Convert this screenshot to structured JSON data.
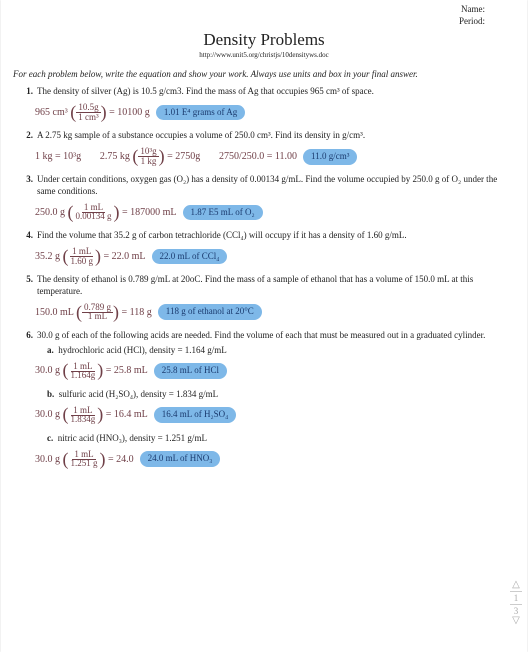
{
  "header": {
    "name_label": "Name:",
    "period_label": "Period:"
  },
  "title": "Density Problems",
  "source_url": "http://www.unit5.org/christjs/10densityws.doc",
  "instructions": "For each problem below, write the equation and show your work.  Always use units and box in your final answer.",
  "problems": [
    {
      "num": "1.",
      "text": "The density of silver (Ag) is 10.5 g/cm3.  Find the mass of Ag that occupies 965 cm³ of space.",
      "work_left": "965 cm³",
      "work_frac_top": "10.5g",
      "work_frac_bot": "1 cm³",
      "work_eq": "= 10100 g",
      "answer": "1.01 E⁴ grams of Ag"
    },
    {
      "num": "2.",
      "text": "A 2.75 kg sample of a substance occupies a volume of 250.0 cm³.  Find its density in g/cm³.",
      "work_pre": "1 kg = 10³g",
      "work_left": "2.75 kg",
      "work_frac_top": "10³g",
      "work_frac_bot": "1 kg",
      "work_eq": "= 2750g",
      "work_extra": "2750/250.0 = 11.00",
      "answer": "11.0 g/cm³"
    },
    {
      "num": "3.",
      "text": "Under certain conditions, oxygen gas (O₂) has a density of 0.00134 g/mL.  Find the volume occupied by 250.0 g of O₂ under the same conditions.",
      "work_left": "250.0 g",
      "work_frac_top": "1 mL",
      "work_frac_bot": "0.00134 g",
      "work_eq": "= 187000 mL",
      "answer": "1.87 E5 mL of O₂"
    },
    {
      "num": "4.",
      "text": "Find the volume that 35.2 g of carbon tetrachloride (CCl₄) will occupy if it has a density of 1.60 g/mL.",
      "work_left": "35.2 g",
      "work_frac_top": "1 mL",
      "work_frac_bot": "1.60 g",
      "work_eq": "= 22.0 mL",
      "answer": "22.0 mL of CCl₄"
    },
    {
      "num": "5.",
      "text": "The density of ethanol is 0.789 g/mL at 20oC.  Find the mass of a sample of ethanol that has a volume of 150.0 mL at this temperature.",
      "work_left": "150.0 mL",
      "work_frac_top": "0.789 g",
      "work_frac_bot": "1 mL",
      "work_eq": "= 118 g",
      "answer": "118 g of ethanol at 20°C"
    },
    {
      "num": "6.",
      "text": "30.0 g of each of the following acids are needed.  Find the volume of each that must be measured out in a graduated cylinder.",
      "subs": [
        {
          "letter": "a.",
          "text": "hydrochloric acid (HCl), density = 1.164 g/mL",
          "work_left": "30.0 g",
          "work_frac_top": "1 mL",
          "work_frac_bot": "1.164g",
          "work_eq": "= 25.8 mL",
          "answer": "25.8 mL of HCl"
        },
        {
          "letter": "b.",
          "text": "sulfuric acid (H₂SO₄), density = 1.834 g/mL",
          "work_left": "30.0 g",
          "work_frac_top": "1 mL",
          "work_frac_bot": "1.834g",
          "work_eq": "= 16.4 mL",
          "answer": "16.4 mL of H₂SO₄"
        },
        {
          "letter": "c.",
          "text": "nitric acid (HNO₃), density = 1.251 g/mL",
          "work_left": "30.0 g",
          "work_frac_top": "1 mL",
          "work_frac_bot": "1.251 g",
          "work_eq": "= 24.0",
          "answer": "24.0 mL of HNO₃"
        }
      ]
    }
  ],
  "scroll": {
    "page_current": "1",
    "page_total": "3"
  },
  "colors": {
    "handwriting": "#704048",
    "answer_bg": "#7eb8e8",
    "answer_text": "#1a3a6e",
    "page_bg": "#ffffff",
    "outer_bg": "#fafafa"
  }
}
